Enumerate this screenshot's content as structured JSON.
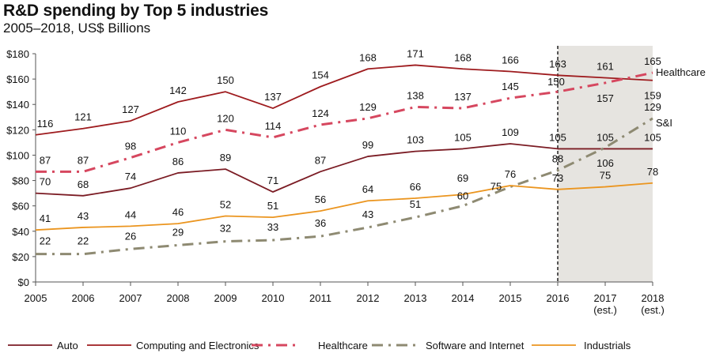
{
  "header": {
    "title": "R&D spending by Top 5 industries",
    "subtitle": "2005–2018, US$ Billions"
  },
  "chart_data": {
    "type": "line",
    "title": "R&D spending by Top 5 industries",
    "subtitle": "2005–2018, US$ Billions",
    "xlabel": "",
    "ylabel": "",
    "x": [
      "2005",
      "2006",
      "2007",
      "2008",
      "2009",
      "2010",
      "2011",
      "2012",
      "2013",
      "2014",
      "2015",
      "2016",
      "2017",
      "2018"
    ],
    "x_tick_sublabels": [
      "",
      "",
      "",
      "",
      "",
      "",
      "",
      "",
      "",
      "",
      "",
      "",
      "(est.)",
      "(est.)"
    ],
    "ylim": [
      0,
      180
    ],
    "y_ticks": [
      0,
      20,
      40,
      60,
      80,
      100,
      120,
      140,
      160,
      180
    ],
    "y_tick_labels": [
      "$0",
      "$20",
      "$40",
      "$60",
      "$80",
      "$100",
      "$120",
      "$140",
      "$160",
      "$180"
    ],
    "grid": false,
    "estimate_region": {
      "from": "2016",
      "to": "2018",
      "shaded": true,
      "divider": "dashed vertical line at 2016"
    },
    "series": [
      {
        "name": "Auto",
        "color": "#7b1c24",
        "style": "solid",
        "values": [
          70,
          68,
          74,
          86,
          89,
          71,
          87,
          99,
          103,
          105,
          109,
          105,
          105,
          105
        ]
      },
      {
        "name": "Computing and Electronics",
        "color": "#9e1b1e",
        "style": "solid",
        "values": [
          116,
          121,
          127,
          142,
          150,
          137,
          154,
          168,
          171,
          168,
          166,
          163,
          161,
          159
        ]
      },
      {
        "name": "Healthcare",
        "color": "#d6475f",
        "style": "dash-dot",
        "values": [
          87,
          87,
          98,
          110,
          120,
          114,
          124,
          129,
          138,
          137,
          145,
          150,
          157,
          165
        ],
        "end_label": "Healthcare"
      },
      {
        "name": "Software and Internet",
        "color": "#8e8a72",
        "style": "dash-dot",
        "values": [
          22,
          22,
          26,
          29,
          32,
          33,
          36,
          43,
          51,
          60,
          75,
          88,
          106,
          129
        ],
        "end_label": "S&I"
      },
      {
        "name": "Industrials",
        "color": "#eb951f",
        "style": "solid",
        "values": [
          41,
          43,
          44,
          46,
          52,
          51,
          56,
          64,
          66,
          69,
          76,
          73,
          75,
          78
        ]
      }
    ],
    "legend": {
      "placement": "bottom",
      "entries": [
        "Auto",
        "Computing and Electronics",
        "Healthcare",
        "Software and Internet",
        "Industrials"
      ]
    }
  }
}
